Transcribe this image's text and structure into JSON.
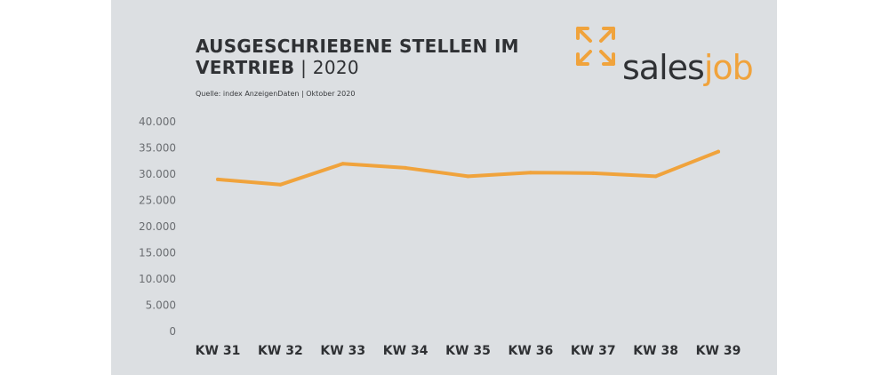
{
  "header": {
    "title_main": "AUSGESCHRIEBENE STELLEN IM VERTRIEB",
    "title_separator": " | ",
    "title_year": "2020",
    "source": "Quelle: index AnzeigenDaten  |  Oktober 2020"
  },
  "logo": {
    "part1": "sales",
    "part2": "job",
    "icon": "arrows-out-icon",
    "color": "#f0a33c"
  },
  "colors": {
    "line": "#f0a33c",
    "panel": "#dcdfe2",
    "text": "#2f3134"
  },
  "chart_data": {
    "type": "line",
    "title": "AUSGESCHRIEBENE STELLEN IM VERTRIEB | 2020",
    "categories": [
      "KW 31",
      "KW 32",
      "KW 33",
      "KW 34",
      "KW 35",
      "KW 36",
      "KW 37",
      "KW 38",
      "KW 39"
    ],
    "series": [
      {
        "values": [
          29000,
          28000,
          32000,
          31200,
          29600,
          30300,
          30200,
          29600,
          34300
        ]
      }
    ],
    "ylim": [
      0,
      40000
    ],
    "yticks": [
      0,
      5000,
      10000,
      15000,
      20000,
      25000,
      30000,
      35000,
      40000
    ],
    "ytick_labels": [
      "0",
      "5.000",
      "10.000",
      "15.000",
      "20.000",
      "25.000",
      "30.000",
      "35.000",
      "40.000"
    ],
    "grid": false,
    "legend": "none"
  }
}
